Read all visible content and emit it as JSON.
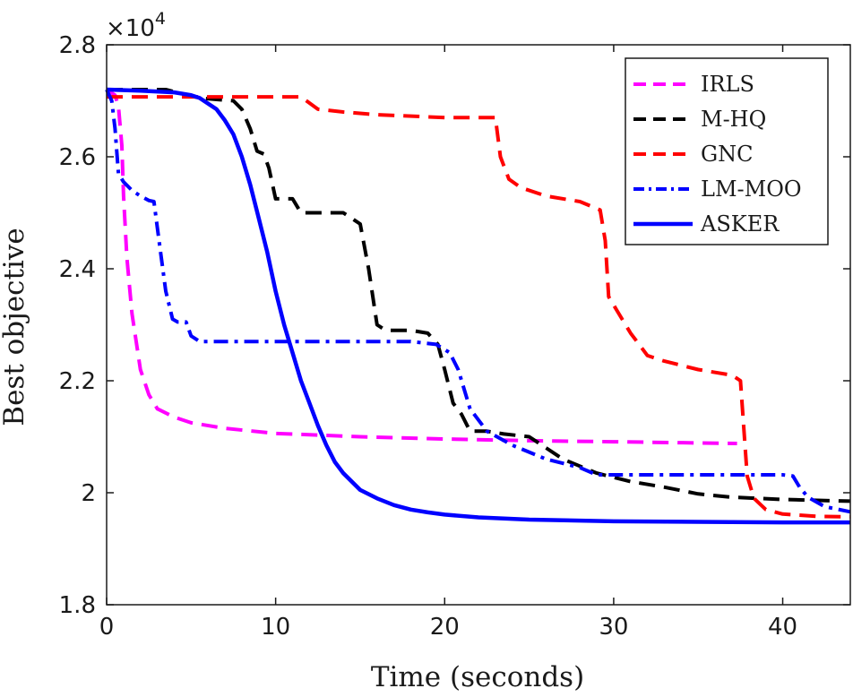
{
  "chart_data": {
    "type": "line",
    "title": "",
    "xlabel": "Time (seconds)",
    "ylabel": "Best objective",
    "xlim": [
      0,
      44
    ],
    "ylim": [
      1.8,
      2.8
    ],
    "x_ticks": [
      0,
      10,
      20,
      30,
      40
    ],
    "x_tick_labels": [
      "0",
      "10",
      "20",
      "30",
      "40"
    ],
    "y_ticks": [
      1.8,
      2.0,
      2.2,
      2.4,
      2.6,
      2.8
    ],
    "y_tick_labels": [
      "1.8",
      "2",
      "2.2",
      "2.4",
      "2.6",
      "2.8"
    ],
    "y_multiplier": "×10",
    "y_multiplier_exponent": "4",
    "grid": false,
    "legend_position": "top-right",
    "series": [
      {
        "name": "IRLS",
        "color": "#ff00ff",
        "style": "dashed",
        "x": [
          0,
          0.5,
          0.7,
          0.9,
          1.0,
          1.2,
          1.5,
          2.0,
          2.5,
          3.0,
          4.0,
          5.0,
          7.0,
          10.0,
          15.0,
          20.0,
          25.0,
          30.0,
          35.0,
          37.3
        ],
        "y": [
          2.72,
          2.71,
          2.69,
          2.62,
          2.53,
          2.42,
          2.32,
          2.22,
          2.175,
          2.15,
          2.135,
          2.125,
          2.115,
          2.106,
          2.1,
          2.096,
          2.093,
          2.091,
          2.089,
          2.088
        ]
      },
      {
        "name": "M-HQ",
        "color": "#000000",
        "style": "dashed",
        "x": [
          0,
          3.5,
          5.5,
          7.5,
          8.0,
          8.5,
          8.9,
          9.3,
          9.6,
          10.0,
          11.0,
          11.5,
          13.0,
          14.0,
          15.0,
          15.5,
          16.0,
          16.5,
          18.0,
          19.0,
          19.6,
          20.0,
          20.5,
          21.0,
          21.5,
          22.5,
          23.5,
          25.0,
          26.0,
          27.0,
          29.0,
          31.0,
          33.0,
          35.0,
          37.0,
          40.0,
          44.0
        ],
        "y": [
          2.72,
          2.72,
          2.705,
          2.7,
          2.685,
          2.65,
          2.61,
          2.605,
          2.58,
          2.525,
          2.525,
          2.5,
          2.5,
          2.5,
          2.48,
          2.4,
          2.3,
          2.29,
          2.29,
          2.285,
          2.265,
          2.22,
          2.16,
          2.14,
          2.11,
          2.11,
          2.105,
          2.1,
          2.08,
          2.06,
          2.035,
          2.02,
          2.01,
          1.998,
          1.992,
          1.988,
          1.985
        ]
      },
      {
        "name": "GNC",
        "color": "#ff0000",
        "style": "dashed",
        "x": [
          0,
          11.5,
          12.5,
          14.0,
          16.0,
          20.0,
          22.0,
          23.0,
          23.3,
          23.8,
          24.5,
          26.0,
          28.0,
          29.2,
          29.5,
          29.7,
          30.2,
          31.0,
          32.0,
          33.0,
          35.0,
          37.0,
          37.5,
          37.9,
          38.3,
          39.0,
          40.0,
          42.0,
          44.0
        ],
        "y": [
          2.707,
          2.707,
          2.685,
          2.68,
          2.675,
          2.67,
          2.67,
          2.67,
          2.6,
          2.56,
          2.545,
          2.53,
          2.52,
          2.505,
          2.45,
          2.35,
          2.325,
          2.285,
          2.245,
          2.235,
          2.22,
          2.21,
          2.2,
          2.03,
          1.99,
          1.97,
          1.962,
          1.958,
          1.957
        ]
      },
      {
        "name": "LM-MOO",
        "color": "#0000ff",
        "style": "dashdot",
        "x": [
          0,
          0.3,
          0.5,
          0.7,
          1.0,
          1.5,
          2.0,
          2.5,
          2.8,
          3.1,
          3.5,
          3.9,
          4.2,
          4.7,
          5.0,
          5.5,
          6.0,
          8.0,
          12.0,
          16.0,
          18.0,
          19.5,
          20.3,
          20.8,
          21.5,
          22.5,
          24.0,
          26.0,
          28.0,
          29.0,
          32.0,
          36.0,
          40.0,
          40.6,
          41.0,
          41.5,
          42.5,
          44.0
        ],
        "y": [
          2.72,
          2.7,
          2.65,
          2.57,
          2.555,
          2.54,
          2.53,
          2.522,
          2.52,
          2.45,
          2.36,
          2.31,
          2.305,
          2.305,
          2.28,
          2.27,
          2.27,
          2.27,
          2.27,
          2.27,
          2.27,
          2.265,
          2.25,
          2.22,
          2.15,
          2.11,
          2.085,
          2.06,
          2.045,
          2.032,
          2.032,
          2.032,
          2.032,
          2.03,
          2.01,
          1.992,
          1.975,
          1.966
        ]
      },
      {
        "name": "ASKER",
        "color": "#0000ff",
        "style": "solid",
        "x": [
          0,
          2.0,
          4.0,
          5.0,
          5.5,
          6.0,
          6.5,
          7.0,
          7.5,
          8.0,
          8.5,
          9.0,
          9.5,
          10.0,
          10.5,
          11.0,
          11.5,
          12.0,
          12.5,
          13.0,
          13.5,
          14.0,
          15.0,
          16.0,
          17.0,
          18.0,
          19.0,
          20.0,
          22.0,
          25.0,
          30.0,
          35.0,
          40.0,
          44.0
        ],
        "y": [
          2.72,
          2.718,
          2.715,
          2.71,
          2.705,
          2.695,
          2.685,
          2.665,
          2.64,
          2.6,
          2.55,
          2.49,
          2.43,
          2.36,
          2.3,
          2.25,
          2.2,
          2.16,
          2.12,
          2.085,
          2.055,
          2.035,
          2.005,
          1.99,
          1.978,
          1.97,
          1.965,
          1.961,
          1.956,
          1.952,
          1.949,
          1.948,
          1.947,
          1.947
        ]
      }
    ]
  }
}
